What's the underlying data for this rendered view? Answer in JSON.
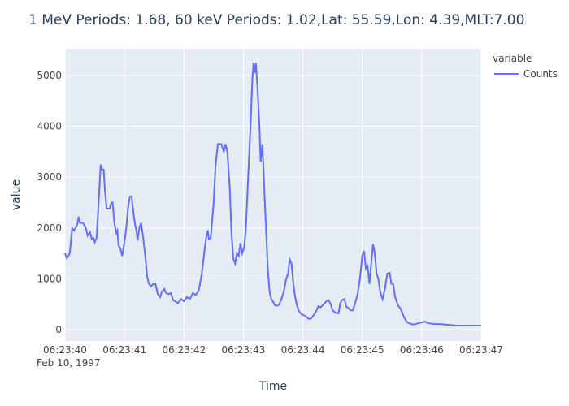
{
  "chart_data": {
    "type": "line",
    "title": "1 MeV Periods: 1.68, 60 keV Periods: 1.02,Lat: 55.59,Lon: 4.39,MLT:7.00",
    "x_label": "Time",
    "y_label": "value",
    "x_date": "Feb 10, 1997",
    "legend_title": "variable",
    "legend": "top-right",
    "grid": true,
    "x": [
      "06:23:40.00",
      "06:23:40.03",
      "06:23:40.08",
      "06:23:40.12",
      "06:23:40.15",
      "06:23:40.20",
      "06:23:40.23",
      "06:23:40.25",
      "06:23:40.30",
      "06:23:40.35",
      "06:23:40.38",
      "06:23:40.42",
      "06:23:40.45",
      "06:23:40.48",
      "06:23:40.50",
      "06:23:40.53",
      "06:23:40.57",
      "06:23:40.60",
      "06:23:40.62",
      "06:23:40.65",
      "06:23:40.67",
      "06:23:40.70",
      "06:23:40.75",
      "06:23:40.78",
      "06:23:40.80",
      "06:23:40.83",
      "06:23:40.86",
      "06:23:40.88",
      "06:23:40.90",
      "06:23:40.93",
      "06:23:40.96",
      "06:23:40.99",
      "06:23:41.03",
      "06:23:41.06",
      "06:23:41.09",
      "06:23:41.12",
      "06:23:41.15",
      "06:23:41.18",
      "06:23:41.20",
      "06:23:41.22",
      "06:23:41.25",
      "06:23:41.28",
      "06:23:41.31",
      "06:23:41.35",
      "06:23:41.38",
      "06:23:41.41",
      "06:23:41.45",
      "06:23:41.48",
      "06:23:41.52",
      "06:23:41.56",
      "06:23:41.60",
      "06:23:41.63",
      "06:23:41.67",
      "06:23:41.70",
      "06:23:41.74",
      "06:23:41.78",
      "06:23:41.82",
      "06:23:41.86",
      "06:23:41.90",
      "06:23:41.95",
      "06:23:42.00",
      "06:23:42.05",
      "06:23:42.10",
      "06:23:42.15",
      "06:23:42.20",
      "06:23:42.25",
      "06:23:42.30",
      "06:23:42.35",
      "06:23:42.38",
      "06:23:42.40",
      "06:23:42.42",
      "06:23:42.45",
      "06:23:42.50",
      "06:23:42.53",
      "06:23:42.57",
      "06:23:42.63",
      "06:23:42.67",
      "06:23:42.70",
      "06:23:42.73",
      "06:23:42.77",
      "06:23:42.80",
      "06:23:42.83",
      "06:23:42.86",
      "06:23:42.89",
      "06:23:42.92",
      "06:23:42.95",
      "06:23:42.98",
      "06:23:43.01",
      "06:23:43.04",
      "06:23:43.08",
      "06:23:43.12",
      "06:23:43.15",
      "06:23:43.17",
      "06:23:43.19",
      "06:23:43.21",
      "06:23:43.24",
      "06:23:43.27",
      "06:23:43.29",
      "06:23:43.32",
      "06:23:43.35",
      "06:23:43.38",
      "06:23:43.41",
      "06:23:43.44",
      "06:23:43.47",
      "06:23:43.50",
      "06:23:43.53",
      "06:23:43.57",
      "06:23:43.60",
      "06:23:43.64",
      "06:23:43.68",
      "06:23:43.72",
      "06:23:43.75",
      "06:23:43.78",
      "06:23:43.81",
      "06:23:43.84",
      "06:23:43.87",
      "06:23:43.90",
      "06:23:43.94",
      "06:23:43.98",
      "06:23:44.02",
      "06:23:44.06",
      "06:23:44.10",
      "06:23:44.14",
      "06:23:44.18",
      "06:23:44.22",
      "06:23:44.26",
      "06:23:44.30",
      "06:23:44.35",
      "06:23:44.40",
      "06:23:44.43",
      "06:23:44.47",
      "06:23:44.50",
      "06:23:44.55",
      "06:23:44.60",
      "06:23:44.63",
      "06:23:44.66",
      "06:23:44.70",
      "06:23:44.73",
      "06:23:44.77",
      "06:23:44.80",
      "06:23:44.84",
      "06:23:44.88",
      "06:23:44.92",
      "06:23:44.96",
      "06:23:45.00",
      "06:23:45.03",
      "06:23:45.06",
      "06:23:45.09",
      "06:23:45.12",
      "06:23:45.15",
      "06:23:45.18",
      "06:23:45.21",
      "06:23:45.24",
      "06:23:45.27",
      "06:23:45.30",
      "06:23:45.34",
      "06:23:45.38",
      "06:23:45.42",
      "06:23:45.46",
      "06:23:45.49",
      "06:23:45.52",
      "06:23:45.55",
      "06:23:45.60",
      "06:23:45.65",
      "06:23:45.70",
      "06:23:45.75",
      "06:23:45.80",
      "06:23:45.85",
      "06:23:45.90",
      "06:23:45.95",
      "06:23:46.00",
      "06:23:46.05",
      "06:23:46.10",
      "06:23:46.20",
      "06:23:46.30",
      "06:23:46.40",
      "06:23:46.50",
      "06:23:46.60",
      "06:23:46.70",
      "06:23:47.00"
    ],
    "series": [
      {
        "name": "Counts",
        "color": "#636efa",
        "values": [
          1500,
          1400,
          1500,
          2000,
          1950,
          2050,
          2220,
          2100,
          2100,
          2000,
          1850,
          1920,
          1780,
          1800,
          1720,
          1800,
          2600,
          3250,
          3150,
          3150,
          2750,
          2380,
          2380,
          2500,
          2500,
          2100,
          1900,
          1950,
          1650,
          1600,
          1450,
          1650,
          2000,
          2400,
          2620,
          2620,
          2300,
          2050,
          1950,
          1750,
          2000,
          2100,
          1850,
          1450,
          1050,
          900,
          850,
          900,
          900,
          700,
          640,
          750,
          800,
          720,
          700,
          720,
          580,
          550,
          520,
          600,
          560,
          640,
          600,
          720,
          680,
          780,
          1100,
          1600,
          1850,
          1950,
          1780,
          1800,
          2500,
          3200,
          3650,
          3650,
          3500,
          3650,
          3500,
          2800,
          1900,
          1400,
          1300,
          1500,
          1450,
          1700,
          1500,
          1600,
          1950,
          3000,
          4000,
          4900,
          5250,
          5050,
          5250,
          4700,
          4000,
          3300,
          3650,
          2800,
          2000,
          1200,
          750,
          600,
          550,
          480,
          470,
          490,
          600,
          750,
          1000,
          1100,
          1380,
          1300,
          900,
          650,
          480,
          350,
          300,
          280,
          250,
          210,
          220,
          280,
          350,
          460,
          440,
          500,
          560,
          580,
          500,
          380,
          330,
          320,
          520,
          580,
          600,
          450,
          420,
          380,
          380,
          520,
          700,
          1000,
          1450,
          1550,
          1200,
          1250,
          900,
          1300,
          1680,
          1500,
          1100,
          1000,
          750,
          600,
          800,
          1100,
          1120,
          900,
          900,
          650,
          480,
          400,
          250,
          150,
          120,
          100,
          110,
          130,
          140,
          160,
          130,
          110,
          110,
          100,
          90,
          80,
          80,
          80
        ]
      }
    ],
    "xlim": [
      "06:23:40",
      "06:23:47"
    ],
    "xticks": [
      "06:23:40",
      "06:23:41",
      "06:23:42",
      "06:23:43",
      "06:23:44",
      "06:23:45",
      "06:23:46",
      "06:23:47"
    ],
    "ylim": [
      -224,
      5527
    ],
    "yticks": [
      0,
      1000,
      2000,
      3000,
      4000,
      5000
    ]
  }
}
